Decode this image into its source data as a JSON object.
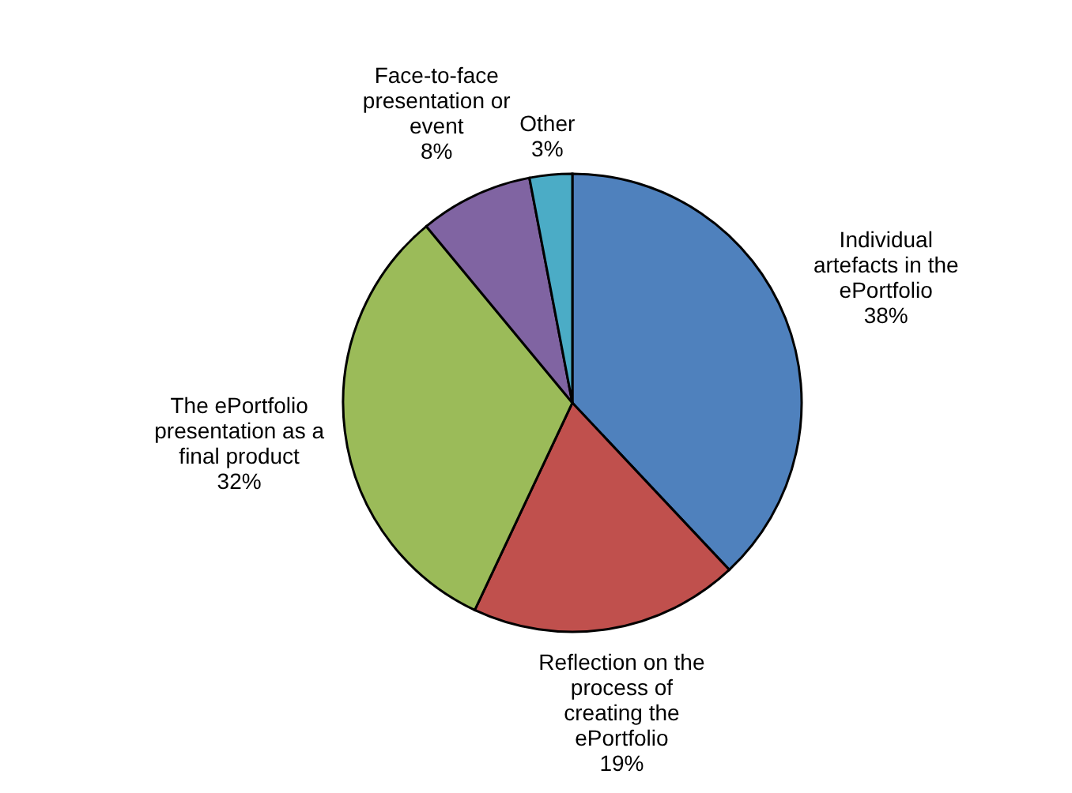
{
  "chart_data": {
    "type": "pie",
    "categories": [
      "Individual artefacts in the ePortfolio",
      "Reflection on the process of creating the ePortfolio",
      "The ePortfolio presentation as a final product",
      "Face-to-face presentation or event",
      "Other"
    ],
    "values": [
      38,
      19,
      32,
      8,
      3
    ],
    "value_labels": [
      "38%",
      "19%",
      "32%",
      "8%",
      "3%"
    ],
    "colors": [
      "#4f81bd",
      "#c0504d",
      "#9bbb59",
      "#8064a2",
      "#4bacc6"
    ]
  }
}
